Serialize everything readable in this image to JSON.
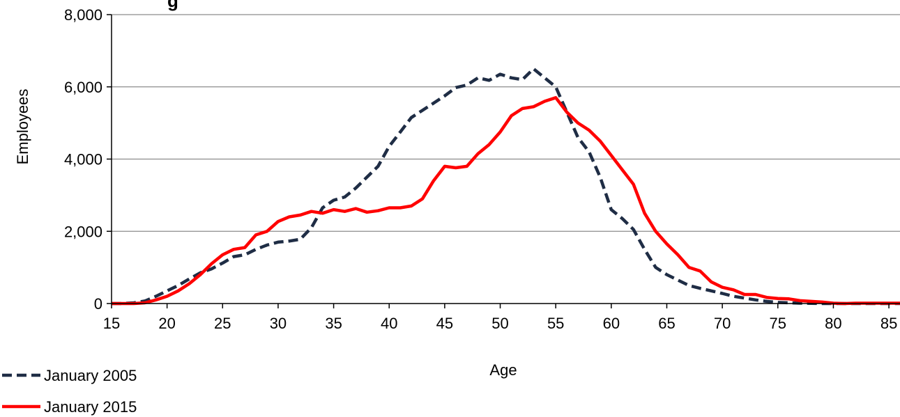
{
  "chart_data": {
    "type": "line",
    "title": "g",
    "xlabel": "Age",
    "ylabel": "Employees",
    "xlim": [
      15,
      86
    ],
    "ylim": [
      0,
      8000
    ],
    "x_ticks": [
      15,
      20,
      25,
      30,
      35,
      40,
      45,
      50,
      55,
      60,
      65,
      70,
      75,
      80,
      85
    ],
    "y_ticks": [
      0,
      2000,
      4000,
      6000,
      8000
    ],
    "y_tick_labels": [
      "0",
      "2,000",
      "4,000",
      "6,000",
      "8,000"
    ],
    "grid": "horizontal",
    "legend_position": "bottom-left",
    "x": [
      15,
      16,
      17,
      18,
      19,
      20,
      21,
      22,
      23,
      24,
      25,
      26,
      27,
      28,
      29,
      30,
      31,
      32,
      33,
      34,
      35,
      36,
      37,
      38,
      39,
      40,
      41,
      42,
      43,
      44,
      45,
      46,
      47,
      48,
      49,
      50,
      51,
      52,
      53,
      54,
      55,
      56,
      57,
      58,
      59,
      60,
      61,
      62,
      63,
      64,
      65,
      66,
      67,
      68,
      69,
      70,
      71,
      72,
      73,
      74,
      75,
      76,
      77,
      78,
      79,
      80,
      81,
      82,
      83,
      84,
      85,
      86
    ],
    "series": [
      {
        "name": "January 2005",
        "color": "#1f2d45",
        "style": "dashed",
        "values": [
          0,
          0,
          20,
          70,
          200,
          350,
          500,
          680,
          850,
          960,
          1120,
          1300,
          1350,
          1500,
          1620,
          1700,
          1730,
          1780,
          2100,
          2650,
          2860,
          2950,
          3200,
          3500,
          3800,
          4350,
          4750,
          5150,
          5350,
          5550,
          5750,
          5980,
          6050,
          6250,
          6180,
          6350,
          6250,
          6200,
          6500,
          6250,
          6000,
          5300,
          4600,
          4200,
          3500,
          2600,
          2350,
          2050,
          1500,
          1000,
          800,
          650,
          500,
          420,
          350,
          280,
          200,
          150,
          100,
          60,
          30,
          20,
          10,
          5,
          0,
          0,
          0,
          0,
          0,
          0,
          0,
          0
        ]
      },
      {
        "name": "January 2015",
        "color": "#ff0000",
        "style": "solid",
        "values": [
          0,
          0,
          0,
          20,
          100,
          200,
          350,
          550,
          800,
          1100,
          1350,
          1500,
          1550,
          1900,
          2000,
          2270,
          2400,
          2450,
          2550,
          2500,
          2600,
          2550,
          2630,
          2530,
          2570,
          2650,
          2650,
          2700,
          2900,
          3400,
          3800,
          3760,
          3800,
          4150,
          4400,
          4750,
          5200,
          5400,
          5450,
          5600,
          5700,
          5300,
          5000,
          4800,
          4500,
          4100,
          3700,
          3300,
          2500,
          2000,
          1650,
          1350,
          1000,
          900,
          600,
          450,
          380,
          250,
          250,
          170,
          140,
          130,
          80,
          60,
          40,
          10,
          0,
          10,
          10,
          10,
          10,
          10
        ]
      }
    ]
  }
}
